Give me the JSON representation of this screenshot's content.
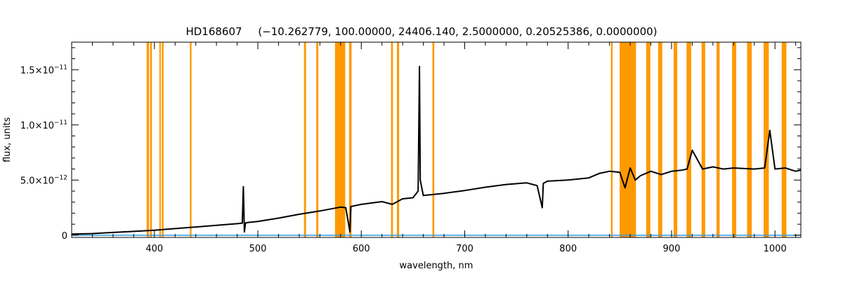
{
  "chart_data": {
    "type": "line",
    "title_object": "HD168607",
    "title_params": "(−10.262779, 100.00000, 24406.140, 2.5000000, 0.20525386, 0.0000000)",
    "xlabel": "wavelength, nm",
    "ylabel": "flux, units",
    "xlim": [
      320,
      1025
    ],
    "ylim": [
      -2e-13,
      1.75e-11
    ],
    "x_ticks": [
      {
        "value": 400,
        "label": "400"
      },
      {
        "value": 500,
        "label": "500"
      },
      {
        "value": 600,
        "label": "600"
      },
      {
        "value": 700,
        "label": "700"
      },
      {
        "value": 800,
        "label": "800"
      },
      {
        "value": 900,
        "label": "900"
      },
      {
        "value": 1000,
        "label": "1000"
      }
    ],
    "y_ticks": [
      {
        "value": 0,
        "mantissa": "0",
        "exponent": ""
      },
      {
        "value": 5e-12,
        "mantissa": "5.0×10",
        "exponent": "−12"
      },
      {
        "value": 1e-11,
        "mantissa": "1.0×10",
        "exponent": "−11"
      },
      {
        "value": 1.5e-11,
        "mantissa": "1.5×10",
        "exponent": "−11"
      }
    ],
    "colors": {
      "spectrum": "#000000",
      "masked_bands": "#ff9900",
      "baseline": "#3399dd"
    },
    "masked_bands": [
      [
        392.5,
        394.8
      ],
      [
        395.8,
        397.6
      ],
      [
        404.8,
        406.2
      ],
      [
        407.2,
        408.9
      ],
      [
        434.3,
        435.9
      ],
      [
        544.6,
        546.6
      ],
      [
        556.5,
        558.5
      ],
      [
        574.6,
        584.5
      ],
      [
        588.2,
        590.6
      ],
      [
        628.8,
        630.6
      ],
      [
        634.5,
        636.6
      ],
      [
        668.8,
        670.6
      ],
      [
        841.4,
        843.0
      ],
      [
        849.8,
        865.6
      ],
      [
        875.5,
        879.5
      ],
      [
        887.0,
        891.0
      ],
      [
        902.0,
        905.5
      ],
      [
        914.5,
        919.0
      ],
      [
        929.0,
        932.5
      ],
      [
        943.5,
        946.5
      ],
      [
        958.5,
        962.5
      ],
      [
        973.0,
        977.5
      ],
      [
        989.0,
        994.0
      ],
      [
        1006.5,
        1011.0
      ]
    ],
    "series": [
      {
        "values_desc": "observed spectrum",
        "x": [
          320,
          340,
          360,
          380,
          400,
          420,
          440,
          460,
          480,
          485,
          486,
          487,
          488,
          490,
          500,
          520,
          540,
          560,
          580,
          585,
          589,
          590,
          600,
          620,
          630,
          640,
          650,
          655,
          656.3,
          657,
          660,
          680,
          700,
          720,
          740,
          760,
          770,
          775,
          776,
          780,
          800,
          820,
          830,
          840,
          850,
          855,
          860,
          865,
          870,
          880,
          890,
          900,
          910,
          915,
          920,
          930,
          940,
          950,
          960,
          980,
          990,
          995,
          1000,
          1010,
          1020,
          1025
        ],
        "y": [
          1e-13,
          1.5e-13,
          2.5e-13,
          3.5e-13,
          4.5e-13,
          6e-13,
          7.5e-13,
          9e-13,
          1.05e-12,
          1.1e-12,
          4.4e-12,
          3e-13,
          1.1e-12,
          1.15e-12,
          1.25e-12,
          1.55e-12,
          1.9e-12,
          2.2e-12,
          2.55e-12,
          2.5e-12,
          3e-13,
          2.6e-12,
          2.8e-12,
          3.05e-12,
          2.8e-12,
          3.3e-12,
          3.4e-12,
          4e-12,
          1.53e-11,
          5e-12,
          3.6e-12,
          3.8e-12,
          4.05e-12,
          4.35e-12,
          4.6e-12,
          4.75e-12,
          4.5e-12,
          2.5e-12,
          4.7e-12,
          4.9e-12,
          5e-12,
          5.2e-12,
          5.6e-12,
          5.8e-12,
          5.7e-12,
          4.3e-12,
          6.1e-12,
          5e-12,
          5.4e-12,
          5.8e-12,
          5.5e-12,
          5.8e-12,
          5.9e-12,
          6e-12,
          7.7e-12,
          6e-12,
          6.2e-12,
          6e-12,
          6.1e-12,
          6e-12,
          6.1e-12,
          9.5e-12,
          6e-12,
          6.1e-12,
          5.8e-12,
          5.9e-12
        ]
      },
      {
        "values_desc": "baseline",
        "x": [
          320,
          1025
        ],
        "y": [
          0,
          0
        ]
      }
    ]
  }
}
